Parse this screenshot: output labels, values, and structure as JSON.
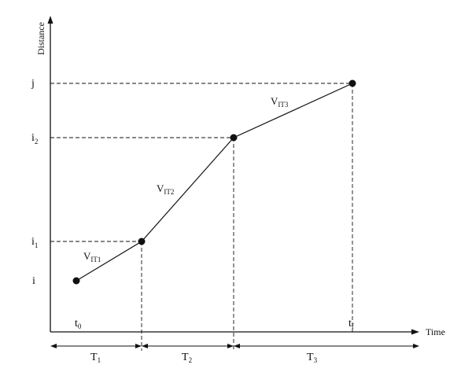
{
  "axes": {
    "y_title": "Distance",
    "x_title": "Time"
  },
  "y_ticks": [
    {
      "base": "j",
      "sub": ""
    },
    {
      "base": "i",
      "sub": "2"
    },
    {
      "base": "i",
      "sub": "1"
    },
    {
      "base": "i",
      "sub": ""
    }
  ],
  "x_ticks": [
    {
      "base": "t",
      "sub": "0"
    },
    {
      "base": "t",
      "sub": "f"
    }
  ],
  "segments": [
    {
      "base": "V",
      "sub": "IT1"
    },
    {
      "base": "V",
      "sub": "IT2"
    },
    {
      "base": "V",
      "sub": "IT3"
    }
  ],
  "periods": [
    {
      "base": "T",
      "sub": "1"
    },
    {
      "base": "T",
      "sub": "2"
    },
    {
      "base": "T",
      "sub": "3"
    }
  ],
  "colors": {
    "ink": "#111111",
    "background": "#ffffff"
  }
}
